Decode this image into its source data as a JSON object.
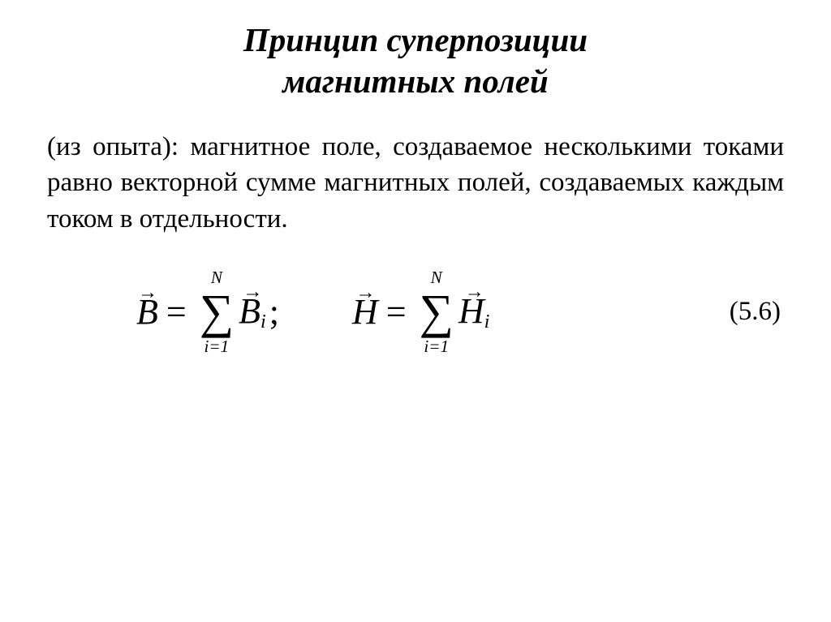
{
  "title_line1": "Принцип суперпозиции",
  "title_line2": "магнитных полей",
  "paragraph": "(из опыта): магнитное поле, создаваемое несколькими токами равно векторной сумме магнитных полей, создаваемых каждым током в отдельности.",
  "equation_number": "(5.6)",
  "eq1": {
    "lhs_letter": "B",
    "sum_upper": "N",
    "sum_lower": "i=1",
    "rhs_letter": "B",
    "rhs_sub": "i",
    "trailing": ";"
  },
  "eq2": {
    "lhs_letter": "H",
    "sum_upper": "N",
    "sum_lower": "i=1",
    "rhs_letter": "H",
    "rhs_sub": "i",
    "trailing": ""
  },
  "symbols": {
    "arrow": "→",
    "sigma": "∑",
    "equals": "="
  }
}
